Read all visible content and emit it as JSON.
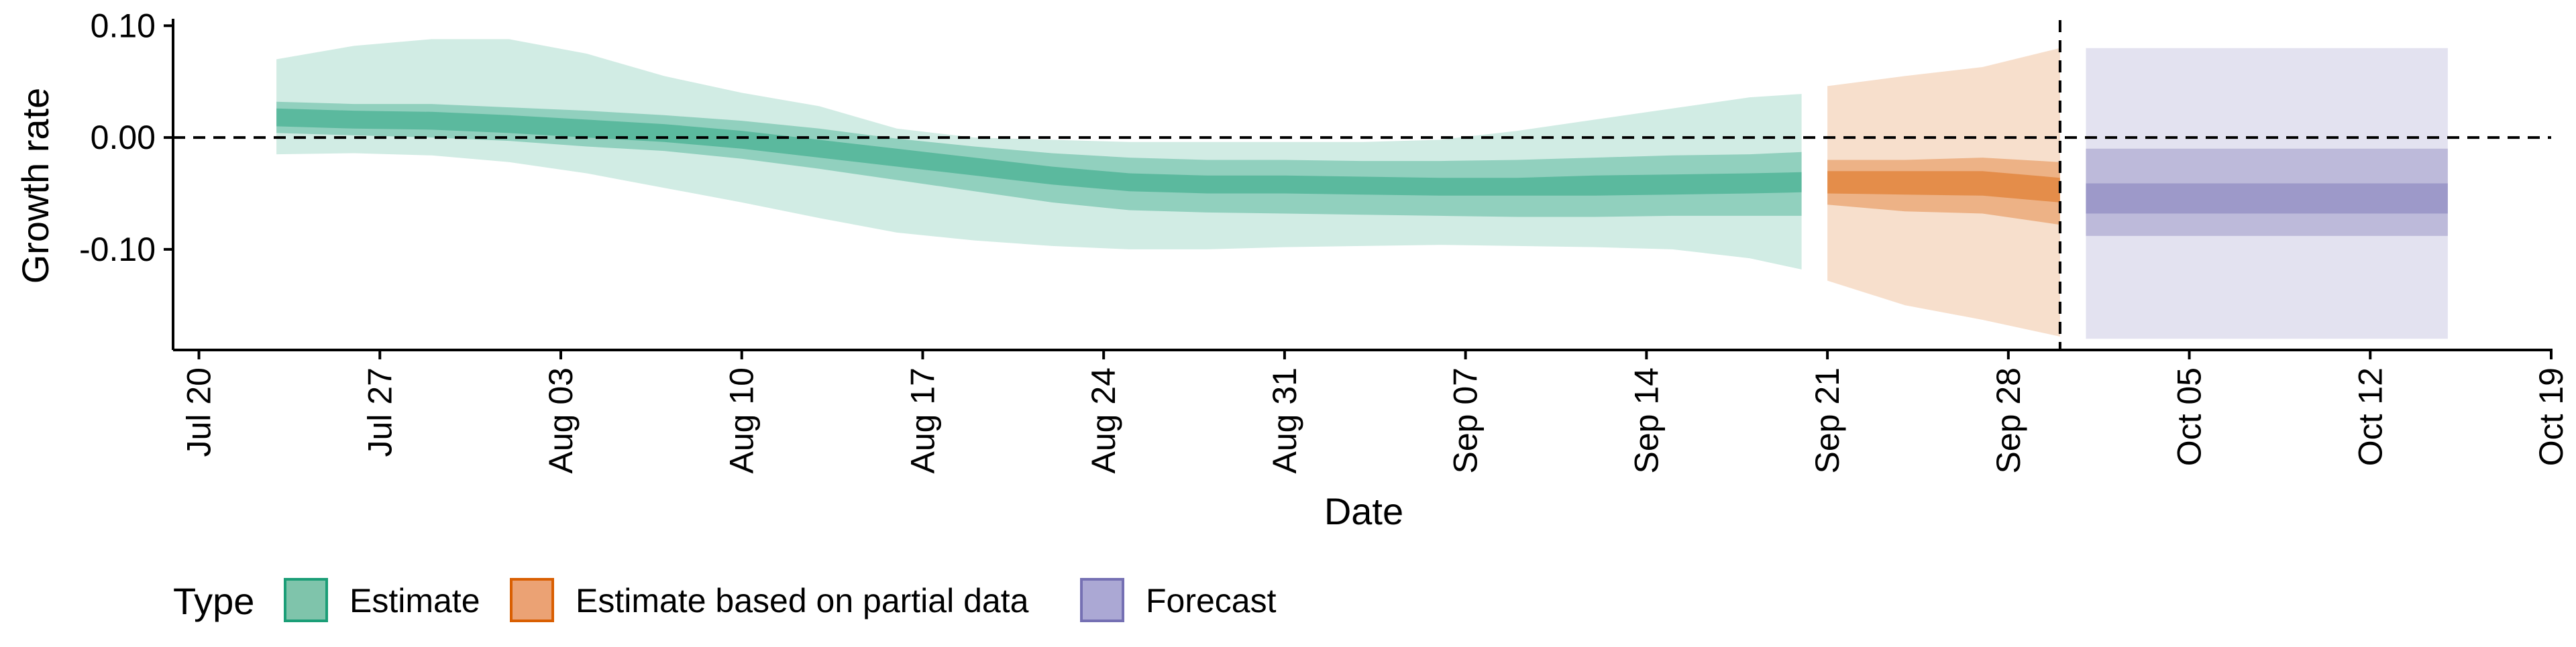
{
  "chart_data": {
    "type": "area",
    "xlabel": "Date",
    "ylabel": "Growth rate",
    "x_ticks": [
      "Jul 20",
      "Jul 27",
      "Aug 03",
      "Aug 10",
      "Aug 17",
      "Aug 24",
      "Aug 31",
      "Sep 07",
      "Sep 14",
      "Sep 21",
      "Sep 28",
      "Oct 05",
      "Oct 12",
      "Oct 19"
    ],
    "y_ticks": [
      "0.10",
      "0.00",
      "-0.10"
    ],
    "ylim": [
      -0.19,
      0.105
    ],
    "xlim": [
      "2020-07-19",
      "2020-10-19"
    ],
    "reference_lines": {
      "horizontal_y": 0.0,
      "vertical_x": "2020-09-30"
    },
    "grid": false,
    "legend": {
      "title": "Type",
      "position": "bottom-left",
      "items": [
        {
          "label": "Estimate",
          "fill": "#7fc4ab",
          "stroke": "#1b9e77"
        },
        {
          "label": "Estimate based on partial data",
          "fill": "#eba274",
          "stroke": "#d95f02"
        },
        {
          "label": "Forecast",
          "fill": "#aba8d4",
          "stroke": "#7570b3"
        }
      ]
    },
    "series": [
      {
        "name": "Estimate",
        "color": "#1b9e77",
        "x": [
          "2020-07-23",
          "2020-07-26",
          "2020-07-29",
          "2020-08-01",
          "2020-08-04",
          "2020-08-07",
          "2020-08-10",
          "2020-08-13",
          "2020-08-16",
          "2020-08-19",
          "2020-08-22",
          "2020-08-25",
          "2020-08-28",
          "2020-08-31",
          "2020-09-03",
          "2020-09-06",
          "2020-09-09",
          "2020-09-12",
          "2020-09-15",
          "2020-09-18",
          "2020-09-20"
        ],
        "median": [
          0.018,
          0.016,
          0.015,
          0.012,
          0.008,
          0.004,
          -0.002,
          -0.01,
          -0.018,
          -0.026,
          -0.034,
          -0.04,
          -0.042,
          -0.042,
          -0.043,
          -0.044,
          -0.044,
          -0.043,
          -0.042,
          -0.041,
          -0.04
        ],
        "ci_20": [
          [
            0.01,
            0.026
          ],
          [
            0.008,
            0.024
          ],
          [
            0.007,
            0.023
          ],
          [
            0.004,
            0.02
          ],
          [
            0.0,
            0.016
          ],
          [
            -0.004,
            0.012
          ],
          [
            -0.01,
            0.006
          ],
          [
            -0.018,
            -0.002
          ],
          [
            -0.026,
            -0.01
          ],
          [
            -0.034,
            -0.018
          ],
          [
            -0.042,
            -0.026
          ],
          [
            -0.048,
            -0.032
          ],
          [
            -0.05,
            -0.034
          ],
          [
            -0.05,
            -0.034
          ],
          [
            -0.051,
            -0.035
          ],
          [
            -0.052,
            -0.036
          ],
          [
            -0.052,
            -0.036
          ],
          [
            -0.052,
            -0.034
          ],
          [
            -0.051,
            -0.033
          ],
          [
            -0.05,
            -0.032
          ],
          [
            -0.049,
            -0.031
          ]
        ],
        "ci_50": [
          [
            0.004,
            0.032
          ],
          [
            0.002,
            0.03
          ],
          [
            0.0,
            0.03
          ],
          [
            -0.003,
            0.027
          ],
          [
            -0.008,
            0.024
          ],
          [
            -0.012,
            0.02
          ],
          [
            -0.019,
            0.015
          ],
          [
            -0.028,
            0.008
          ],
          [
            -0.038,
            -0.001
          ],
          [
            -0.048,
            -0.008
          ],
          [
            -0.058,
            -0.014
          ],
          [
            -0.065,
            -0.018
          ],
          [
            -0.067,
            -0.02
          ],
          [
            -0.068,
            -0.02
          ],
          [
            -0.069,
            -0.021
          ],
          [
            -0.07,
            -0.021
          ],
          [
            -0.071,
            -0.02
          ],
          [
            -0.071,
            -0.018
          ],
          [
            -0.07,
            -0.016
          ],
          [
            -0.07,
            -0.015
          ],
          [
            -0.07,
            -0.013
          ]
        ],
        "ci_90": [
          [
            -0.015,
            0.07
          ],
          [
            -0.014,
            0.082
          ],
          [
            -0.016,
            0.088
          ],
          [
            -0.022,
            0.088
          ],
          [
            -0.032,
            0.075
          ],
          [
            -0.045,
            0.055
          ],
          [
            -0.058,
            0.04
          ],
          [
            -0.072,
            0.028
          ],
          [
            -0.085,
            0.008
          ],
          [
            -0.092,
            0.0
          ],
          [
            -0.097,
            -0.002
          ],
          [
            -0.1,
            -0.004
          ],
          [
            -0.1,
            -0.004
          ],
          [
            -0.098,
            -0.004
          ],
          [
            -0.097,
            -0.004
          ],
          [
            -0.096,
            -0.002
          ],
          [
            -0.097,
            0.006
          ],
          [
            -0.098,
            0.016
          ],
          [
            -0.1,
            0.026
          ],
          [
            -0.108,
            0.036
          ],
          [
            -0.118,
            0.039
          ]
        ]
      },
      {
        "name": "Estimate based on partial data",
        "color": "#d95f02",
        "x": [
          "2020-09-21",
          "2020-09-24",
          "2020-09-27",
          "2020-09-30"
        ],
        "median": [
          -0.04,
          -0.04,
          -0.042,
          -0.048
        ],
        "ci_20": [
          [
            -0.05,
            -0.03
          ],
          [
            -0.051,
            -0.03
          ],
          [
            -0.052,
            -0.03
          ],
          [
            -0.058,
            -0.036
          ]
        ],
        "ci_50": [
          [
            -0.06,
            -0.02
          ],
          [
            -0.066,
            -0.02
          ],
          [
            -0.068,
            -0.018
          ],
          [
            -0.078,
            -0.022
          ]
        ],
        "ci_90": [
          [
            -0.128,
            0.046
          ],
          [
            -0.15,
            0.055
          ],
          [
            -0.163,
            0.063
          ],
          [
            -0.178,
            0.08
          ]
        ]
      },
      {
        "name": "Forecast",
        "color": "#7570b3",
        "x": [
          "2020-10-01",
          "2020-10-15"
        ],
        "median": [
          -0.055,
          -0.055
        ],
        "ci_20": [
          [
            -0.068,
            -0.041
          ],
          [
            -0.068,
            -0.041
          ]
        ],
        "ci_50": [
          [
            -0.088,
            -0.01
          ],
          [
            -0.088,
            -0.01
          ]
        ],
        "ci_90": [
          [
            -0.18,
            0.08
          ],
          [
            -0.18,
            0.08
          ]
        ]
      }
    ]
  }
}
